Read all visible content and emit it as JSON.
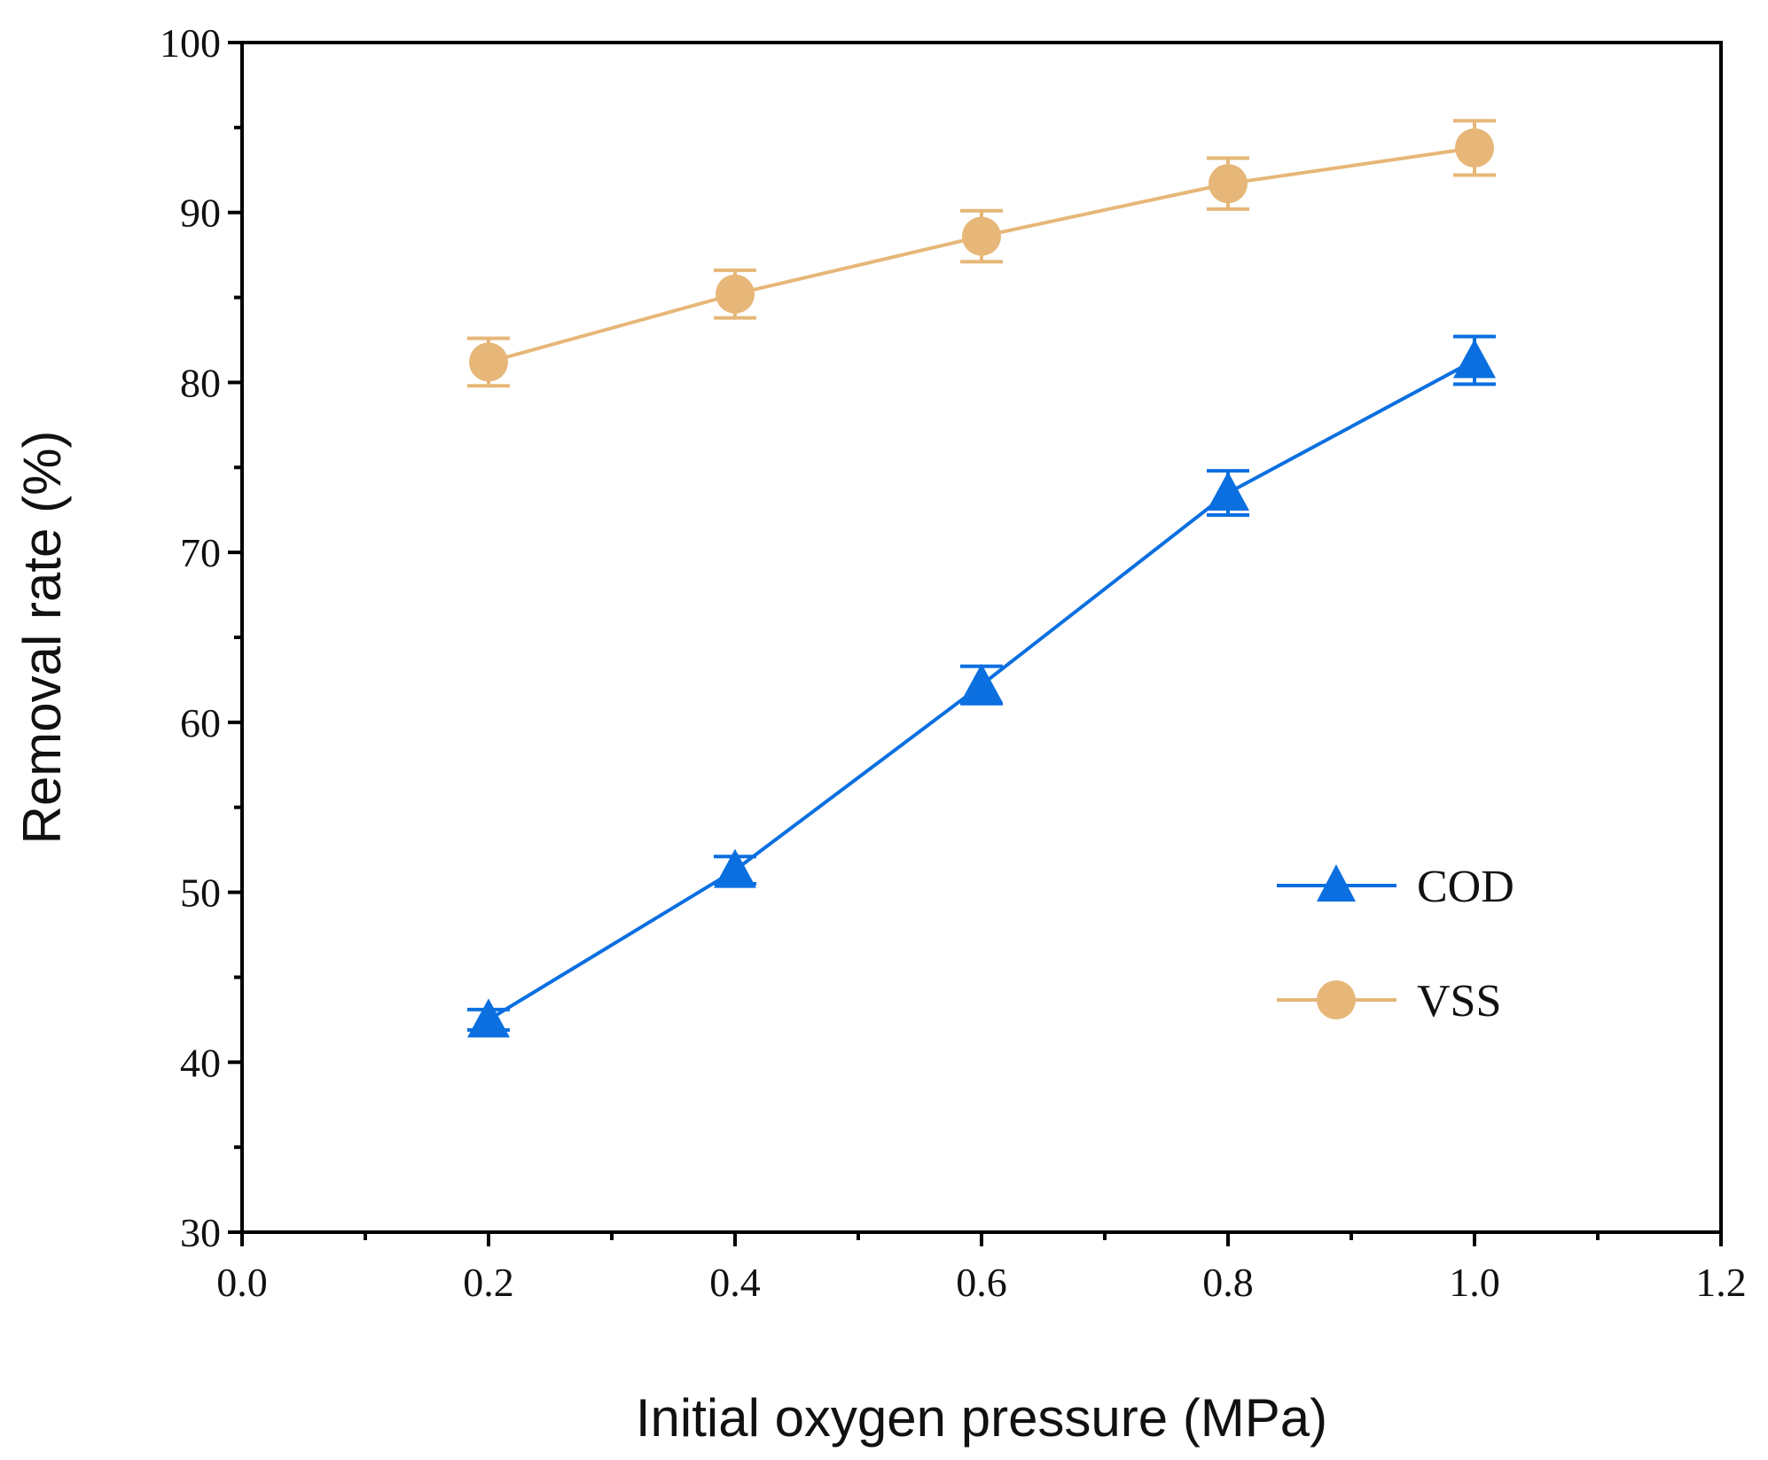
{
  "chart_data": {
    "type": "line",
    "title": "",
    "xlabel": "Initial oxygen pressure (MPa)",
    "ylabel": "Removal rate (%)",
    "xlim": [
      0.0,
      1.2
    ],
    "ylim": [
      30,
      100
    ],
    "x_ticks": [
      0.0,
      0.2,
      0.4,
      0.6,
      0.8,
      1.0,
      1.2
    ],
    "x_tick_labels": [
      "0.0",
      "0.2",
      "0.4",
      "0.6",
      "0.8",
      "1.0",
      "1.2"
    ],
    "y_ticks": [
      30,
      40,
      50,
      60,
      70,
      80,
      90,
      100
    ],
    "y_tick_labels": [
      "30",
      "40",
      "50",
      "60",
      "70",
      "80",
      "90",
      "100"
    ],
    "x_minor_ticks": [
      0.1,
      0.3,
      0.5,
      0.7,
      0.9,
      1.1
    ],
    "y_minor_ticks": [
      35,
      45,
      55,
      65,
      75,
      85,
      95
    ],
    "grid": false,
    "legend_position": "right-middle",
    "series": [
      {
        "name": "COD",
        "marker": "triangle",
        "color": "#0b6fe0",
        "x": [
          0.2,
          0.4,
          0.6,
          0.8,
          1.0
        ],
        "values": [
          42.5,
          51.3,
          62.2,
          73.5,
          81.3
        ],
        "error": [
          0.6,
          0.8,
          1.1,
          1.3,
          1.4
        ]
      },
      {
        "name": "VSS",
        "marker": "circle",
        "color": "#e6b778",
        "x": [
          0.2,
          0.4,
          0.6,
          0.8,
          1.0
        ],
        "values": [
          81.2,
          85.2,
          88.6,
          91.7,
          93.8
        ],
        "error": [
          1.4,
          1.4,
          1.5,
          1.5,
          1.6
        ]
      }
    ]
  }
}
